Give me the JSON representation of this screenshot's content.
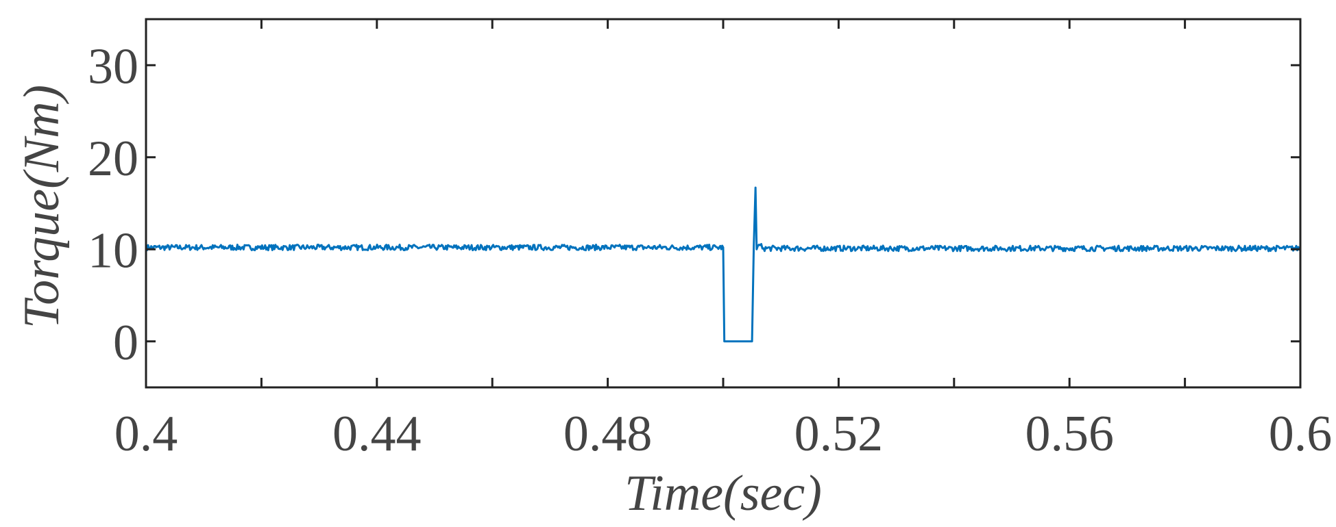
{
  "chart_data": {
    "type": "line",
    "title": "",
    "xlabel": "Time(sec)",
    "ylabel": "Torque(Nm)",
    "xlim": [
      0.4,
      0.6
    ],
    "ylim": [
      -5,
      35
    ],
    "grid": false,
    "x_ticks": [
      0.4,
      0.42,
      0.44,
      0.46,
      0.48,
      0.5,
      0.52,
      0.54,
      0.56,
      0.58,
      0.6
    ],
    "x_tick_labels": [
      {
        "value": 0.4,
        "label": "0.4"
      },
      {
        "value": 0.44,
        "label": "0.44"
      },
      {
        "value": 0.48,
        "label": "0.48"
      },
      {
        "value": 0.52,
        "label": "0.52"
      },
      {
        "value": 0.56,
        "label": "0.56"
      },
      {
        "value": 0.6,
        "label": "0.6"
      }
    ],
    "y_ticks": [
      0,
      10,
      20,
      30
    ],
    "y_tick_labels": [
      {
        "value": 0,
        "label": "0"
      },
      {
        "value": 10,
        "label": "10"
      },
      {
        "value": 20,
        "label": "20"
      },
      {
        "value": 30,
        "label": "30"
      }
    ],
    "series": [
      {
        "color": "#0072BD",
        "x": [
          0.4,
          0.45,
          0.499,
          0.5,
          0.5002,
          0.505,
          0.5053,
          0.5056,
          0.5058,
          0.5062,
          0.507,
          0.55,
          0.6
        ],
        "y": [
          10.2,
          10.2,
          10.2,
          10.2,
          0,
          0,
          10.3,
          16.7,
          10.0,
          10.5,
          10.1,
          10.1,
          10.1
        ],
        "noise_amplitude": 0.3
      }
    ]
  }
}
